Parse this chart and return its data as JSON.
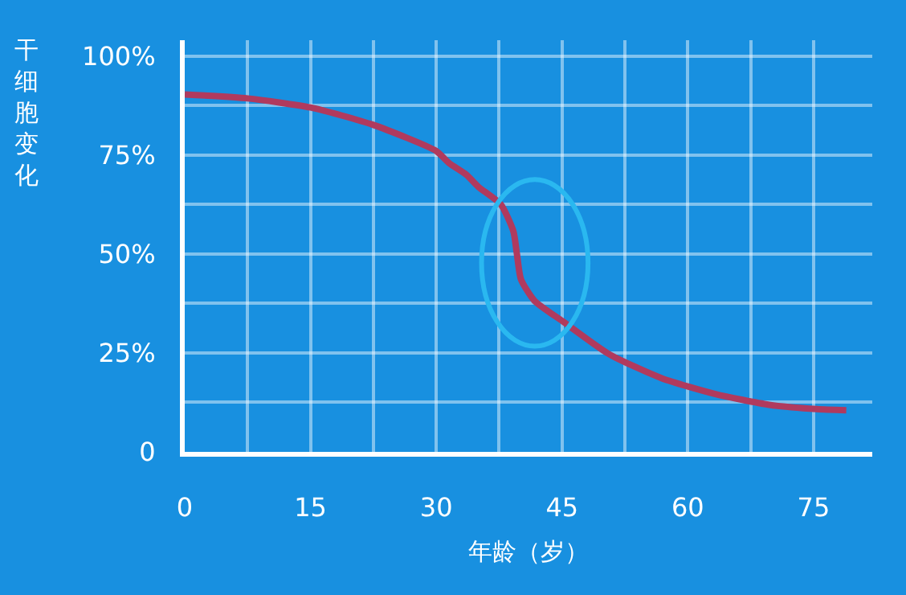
{
  "chart_data": {
    "type": "line",
    "xlabel": "年龄（岁）",
    "ylabel": "干细胞变化",
    "x": [
      0,
      7.5,
      15,
      22.5,
      30,
      31.5,
      33.6,
      35,
      37.7,
      39.2,
      39.6,
      40.1,
      41.7,
      45.2,
      50.6,
      56.9,
      63.3,
      69.7,
      75.4,
      78.9
    ],
    "series": [
      {
        "color": "#b03a5e",
        "values": [
          90.3,
          89.3,
          87,
          82.6,
          76,
          73,
          70,
          67,
          62.5,
          55.7,
          50.3,
          43.6,
          38.2,
          32.8,
          24.7,
          18.6,
          14.6,
          11.9,
          10.8,
          10.5
        ]
      }
    ],
    "xlim": [
      0,
      82
    ],
    "ylim": [
      0,
      104
    ],
    "xticks": [
      0,
      {
        "value": 7.5,
        "label": null
      },
      15,
      {
        "value": 22.5,
        "label": null
      },
      30,
      {
        "value": 37.5,
        "label": null
      },
      45,
      {
        "value": 52.5,
        "label": null
      },
      60,
      {
        "value": 67.5,
        "label": null
      },
      75
    ],
    "yticks": [
      {
        "value": 0,
        "label": "0"
      },
      {
        "value": 12.5,
        "label": null
      },
      {
        "value": 25,
        "label": "25%"
      },
      {
        "value": 37.5,
        "label": null
      },
      {
        "value": 50,
        "label": "50%"
      },
      {
        "value": 62.5,
        "label": null
      },
      {
        "value": 75,
        "label": "75%"
      },
      {
        "value": 87.5,
        "label": null
      },
      {
        "value": 100,
        "label": "100%"
      }
    ],
    "grid": true,
    "marker": "none",
    "line_style": "solid"
  }
}
